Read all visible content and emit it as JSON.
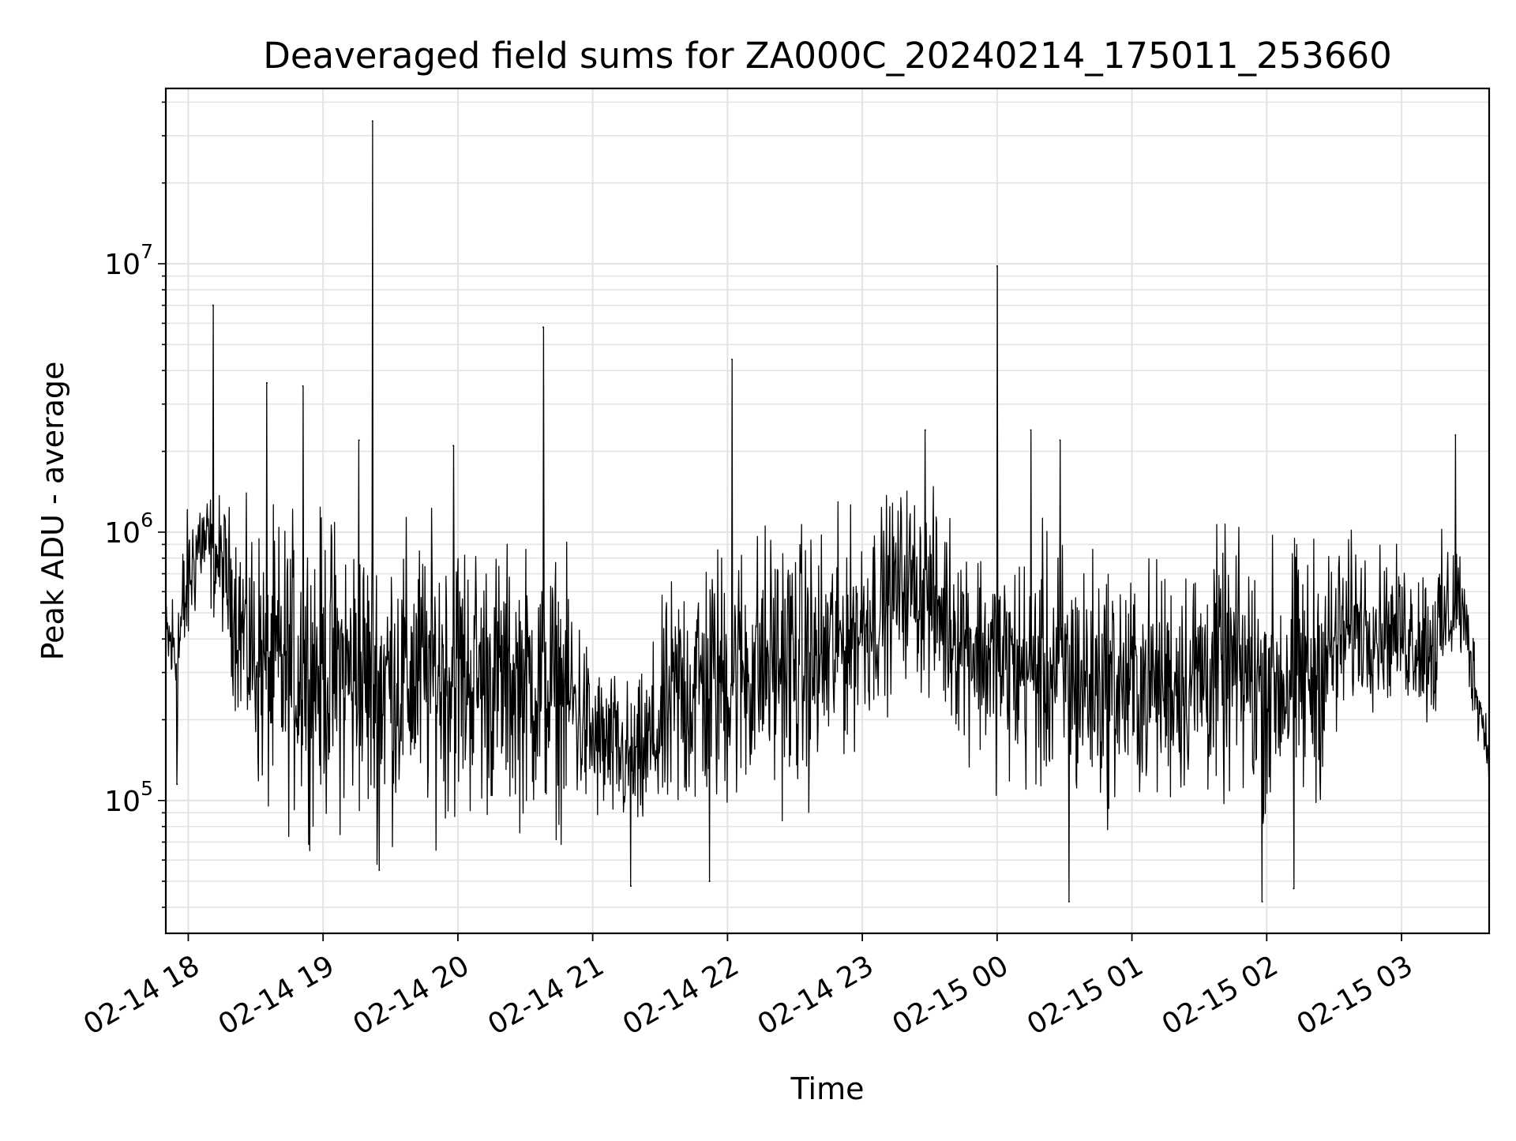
{
  "chart_data": {
    "type": "line",
    "title": "Deaveraged field sums for ZA000C_20240214_175011_253660",
    "xlabel": "Time",
    "ylabel": "Peak ADU - average",
    "yscale": "log",
    "xlim": [
      "2024-02-14 17:50",
      "2024-02-15 03:39"
    ],
    "ylim": [
      32000,
      45000000
    ],
    "x_ticks": [
      {
        "time": "2024-02-14 18:00",
        "label": "02-14 18"
      },
      {
        "time": "2024-02-14 19:00",
        "label": "02-14 19"
      },
      {
        "time": "2024-02-14 20:00",
        "label": "02-14 20"
      },
      {
        "time": "2024-02-14 21:00",
        "label": "02-14 21"
      },
      {
        "time": "2024-02-14 22:00",
        "label": "02-14 22"
      },
      {
        "time": "2024-02-14 23:00",
        "label": "02-14 23"
      },
      {
        "time": "2024-02-15 00:00",
        "label": "02-15 00"
      },
      {
        "time": "2024-02-15 01:00",
        "label": "02-15 01"
      },
      {
        "time": "2024-02-15 02:00",
        "label": "02-15 02"
      },
      {
        "time": "2024-02-15 03:00",
        "label": "02-15 03"
      }
    ],
    "y_ticks": [
      {
        "value": 100000,
        "base": "10",
        "exp": "5"
      },
      {
        "value": 1000000,
        "base": "10",
        "exp": "6"
      },
      {
        "value": 10000000,
        "base": "10",
        "exp": "7"
      }
    ],
    "grid": true,
    "legend": "none",
    "line_color": "#000000",
    "series": [
      {
        "approximate_envelope": [
          {
            "time": "2024-02-14 17:50",
            "low": 270000,
            "high": 600000
          },
          {
            "time": "2024-02-14 17:55",
            "low": 120000,
            "high": 1000000
          },
          {
            "time": "2024-02-14 18:00",
            "low": 300000,
            "high": 1400000
          },
          {
            "time": "2024-02-14 18:05",
            "low": 500000,
            "high": 1800000
          },
          {
            "time": "2024-02-14 18:15",
            "low": 380000,
            "high": 1500000
          },
          {
            "time": "2024-02-14 18:25",
            "low": 120000,
            "high": 1400000
          },
          {
            "time": "2024-02-14 18:35",
            "low": 65000,
            "high": 1400000
          },
          {
            "time": "2024-02-14 18:45",
            "low": 65000,
            "high": 1500000
          },
          {
            "time": "2024-02-14 19:00",
            "low": 65000,
            "high": 1500000
          },
          {
            "time": "2024-02-14 19:10",
            "low": 60000,
            "high": 1500000
          },
          {
            "time": "2024-02-14 19:20",
            "low": 55000,
            "high": 1400000
          },
          {
            "time": "2024-02-14 19:40",
            "low": 65000,
            "high": 1300000
          },
          {
            "time": "2024-02-14 20:00",
            "low": 65000,
            "high": 1400000
          },
          {
            "time": "2024-02-14 20:20",
            "low": 70000,
            "high": 1100000
          },
          {
            "time": "2024-02-14 20:40",
            "low": 65000,
            "high": 1100000
          },
          {
            "time": "2024-02-14 20:50",
            "low": 65000,
            "high": 900000
          },
          {
            "time": "2024-02-14 21:00",
            "low": 70000,
            "high": 400000
          },
          {
            "time": "2024-02-14 21:20",
            "low": 60000,
            "high": 300000
          },
          {
            "time": "2024-02-14 21:40",
            "low": 60000,
            "high": 1100000
          },
          {
            "time": "2024-02-14 22:00",
            "low": 70000,
            "high": 1200000
          },
          {
            "time": "2024-02-14 22:20",
            "low": 80000,
            "high": 1400000
          },
          {
            "time": "2024-02-14 22:40",
            "low": 80000,
            "high": 1300000
          },
          {
            "time": "2024-02-14 23:00",
            "low": 150000,
            "high": 1400000
          },
          {
            "time": "2024-02-14 23:20",
            "low": 250000,
            "high": 1800000
          },
          {
            "time": "2024-02-14 23:40",
            "low": 150000,
            "high": 1400000
          },
          {
            "time": "2024-02-15 00:00",
            "low": 100000,
            "high": 1000000
          },
          {
            "time": "2024-02-15 00:20",
            "low": 80000,
            "high": 1200000
          },
          {
            "time": "2024-02-15 00:40",
            "low": 70000,
            "high": 1100000
          },
          {
            "time": "2024-02-15 01:00",
            "low": 80000,
            "high": 900000
          },
          {
            "time": "2024-02-15 01:20",
            "low": 80000,
            "high": 1000000
          },
          {
            "time": "2024-02-15 01:40",
            "low": 80000,
            "high": 1200000
          },
          {
            "time": "2024-02-15 02:00",
            "low": 70000,
            "high": 1100000
          },
          {
            "time": "2024-02-15 02:20",
            "low": 70000,
            "high": 1200000
          },
          {
            "time": "2024-02-15 02:40",
            "low": 200000,
            "high": 1100000
          },
          {
            "time": "2024-02-15 03:00",
            "low": 200000,
            "high": 900000
          },
          {
            "time": "2024-02-15 03:15",
            "low": 150000,
            "high": 1000000
          },
          {
            "time": "2024-02-15 03:25",
            "low": 300000,
            "high": 1200000
          },
          {
            "time": "2024-02-15 03:39",
            "low": 110000,
            "high": 200000
          }
        ],
        "spikes": [
          {
            "time": "2024-02-14 18:11",
            "value": 7000000
          },
          {
            "time": "2024-02-14 18:35",
            "value": 3600000
          },
          {
            "time": "2024-02-14 18:51",
            "value": 3500000
          },
          {
            "time": "2024-02-14 19:16",
            "value": 2200000
          },
          {
            "time": "2024-02-14 19:22",
            "value": 34000000
          },
          {
            "time": "2024-02-14 19:58",
            "value": 2100000
          },
          {
            "time": "2024-02-14 20:38",
            "value": 5800000
          },
          {
            "time": "2024-02-14 22:02",
            "value": 4400000
          },
          {
            "time": "2024-02-14 23:28",
            "value": 2400000
          },
          {
            "time": "2024-02-15 00:00",
            "value": 9800000
          },
          {
            "time": "2024-02-15 00:15",
            "value": 2400000
          },
          {
            "time": "2024-02-15 00:28",
            "value": 2200000
          },
          {
            "time": "2024-02-15 03:24",
            "value": 2300000
          }
        ],
        "dips": [
          {
            "time": "2024-02-14 17:55",
            "value": 115000
          },
          {
            "time": "2024-02-14 19:25",
            "value": 55000
          },
          {
            "time": "2024-02-14 21:17",
            "value": 48000
          },
          {
            "time": "2024-02-14 21:52",
            "value": 50000
          },
          {
            "time": "2024-02-15 00:32",
            "value": 42000
          },
          {
            "time": "2024-02-15 01:58",
            "value": 42000
          },
          {
            "time": "2024-02-15 02:12",
            "value": 47000
          }
        ]
      }
    ]
  }
}
